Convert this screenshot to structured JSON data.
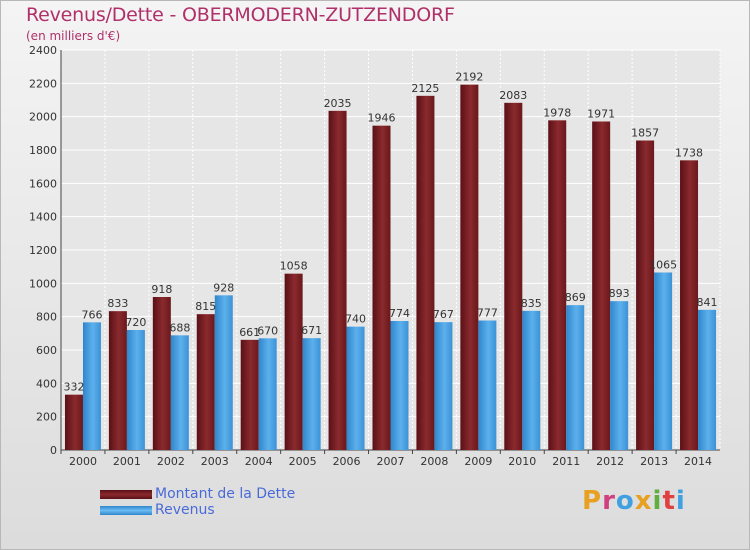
{
  "header": {
    "title": "Revenus/Dette - OBERMODERN-ZUTZENDORF",
    "subtitle": "(en milliers d'€)"
  },
  "colors": {
    "debt": "#7a1e22",
    "revenue": "#4aa0e0",
    "text": "#b0306a",
    "legend_text": "#4a6ad8"
  },
  "legend": {
    "items": [
      {
        "label": "Montant de la Dette",
        "color": "#7a1e22"
      },
      {
        "label": "Revenus",
        "color": "#4aa0e0"
      }
    ]
  },
  "brand": {
    "letters": [
      "P",
      "r",
      "o",
      "x",
      "i",
      "t",
      "i"
    ],
    "colors": [
      "#e8a020",
      "#d04080",
      "#40a0e0",
      "#e8a020",
      "#60b040",
      "#e04040",
      "#40a0e0"
    ]
  },
  "chart_data": {
    "type": "bar",
    "title": "Revenus/Dette - OBERMODERN-ZUTZENDORF",
    "subtitle": "(en milliers d'€)",
    "xlabel": "",
    "ylabel": "",
    "categories": [
      "2000",
      "2001",
      "2002",
      "2003",
      "2004",
      "2005",
      "2006",
      "2007",
      "2008",
      "2009",
      "2010",
      "2011",
      "2012",
      "2013",
      "2014"
    ],
    "series": [
      {
        "name": "Montant de la Dette",
        "values": [
          332,
          833,
          918,
          815,
          661,
          1058,
          2035,
          1946,
          2125,
          2192,
          2083,
          1978,
          1971,
          1857,
          1738
        ]
      },
      {
        "name": "Revenus",
        "values": [
          766,
          720,
          688,
          928,
          670,
          671,
          740,
          774,
          767,
          777,
          835,
          869,
          893,
          1065,
          841
        ]
      }
    ],
    "ylim": [
      0,
      2400
    ],
    "yticks": [
      0,
      200,
      400,
      600,
      800,
      1000,
      1200,
      1400,
      1600,
      1800,
      2000,
      2200,
      2400
    ],
    "grid": true,
    "legend_position": "bottom-left"
  }
}
